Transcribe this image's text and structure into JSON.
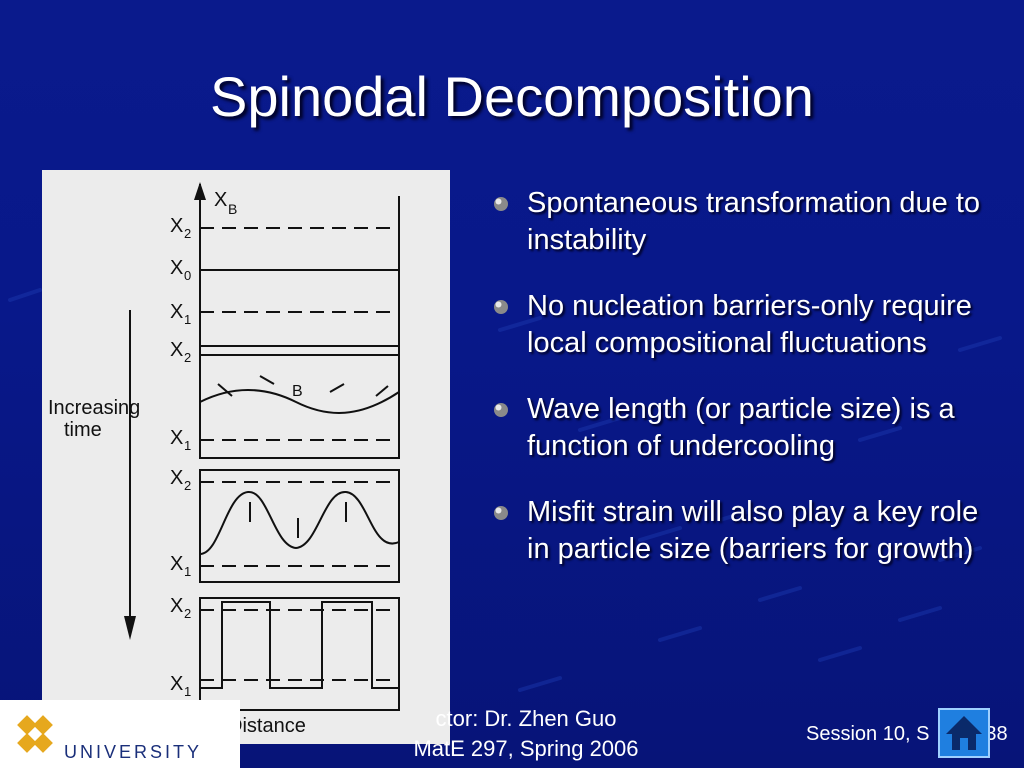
{
  "slide": {
    "title": "Spinodal Decomposition",
    "bullets": [
      "Spontaneous transformation due to instability",
      "No nucleation barriers-only require local compositional fluctuations",
      "Wave length (or particle size) is a function of undercooling",
      "Misfit strain will also play a key role in particle size (barriers for growth)"
    ]
  },
  "figure": {
    "axis_label": "X",
    "axis_label_sub": "B",
    "level_labels": [
      {
        "main": "X",
        "sub": "2"
      },
      {
        "main": "X",
        "sub": "0"
      },
      {
        "main": "X",
        "sub": "1"
      },
      {
        "main": "X",
        "sub": "2"
      },
      {
        "main": "X",
        "sub": "1"
      },
      {
        "main": "X",
        "sub": "2"
      },
      {
        "main": "X",
        "sub": "1"
      },
      {
        "main": "X",
        "sub": "2"
      },
      {
        "main": "X",
        "sub": "1"
      }
    ],
    "b_label": "B",
    "time_label_line1": "Increasing",
    "time_label_line2": "time",
    "distance_label": "Distance"
  },
  "footer": {
    "instructor": "ctor: Dr. Zhen Guo",
    "course": "MatE 297, Spring 2006",
    "session": "Session 10, S",
    "slide_no": "38",
    "university": "UNIVERSITY"
  },
  "colors": {
    "background": "#0a1a8c",
    "text": "#ffffff",
    "home_button": "#1f7fe0"
  },
  "icons": {
    "bullet": "sphere-bullet-icon",
    "home": "home-icon",
    "logo": "university-logo-icon"
  }
}
